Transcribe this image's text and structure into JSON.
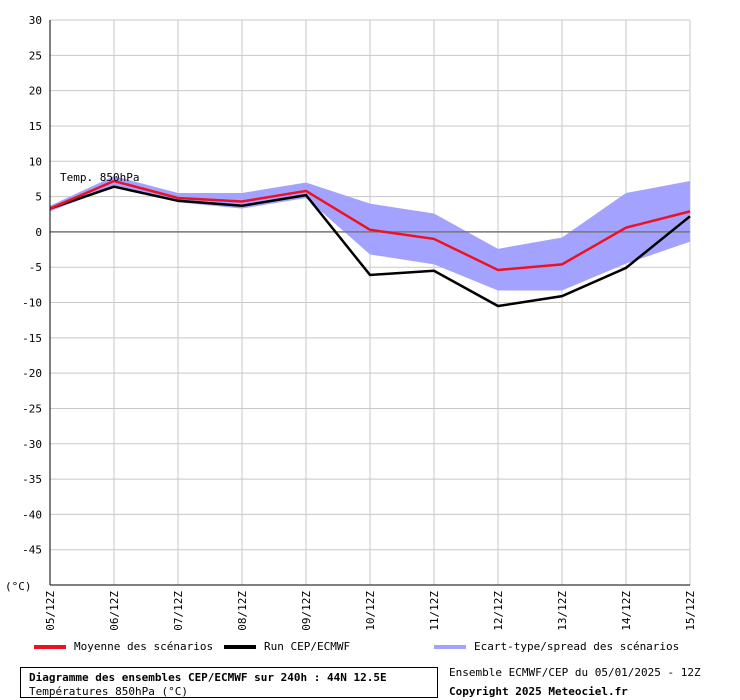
{
  "chart_data": {
    "type": "line",
    "annotation": "Temp. 850hPa",
    "unit_label": "(°C)",
    "categories": [
      "05/12Z",
      "06/12Z",
      "07/12Z",
      "08/12Z",
      "09/12Z",
      "10/12Z",
      "11/12Z",
      "12/12Z",
      "13/12Z",
      "14/12Z",
      "15/12Z"
    ],
    "ylim": [
      -50,
      30
    ],
    "yticks": [
      30,
      25,
      20,
      15,
      10,
      5,
      0,
      -5,
      -10,
      -15,
      -20,
      -25,
      -30,
      -35,
      -40,
      -45
    ],
    "grid": true,
    "series": [
      {
        "name": "Moyenne des scénarios",
        "color": "#ee1122",
        "values": [
          3.3,
          7.2,
          4.8,
          4.3,
          5.8,
          0.3,
          -1.0,
          -5.4,
          -4.6,
          0.6,
          2.9
        ]
      },
      {
        "name": "Run CEP/ECMWF",
        "color": "#000000",
        "values": [
          3.3,
          6.4,
          4.4,
          3.7,
          5.2,
          -6.1,
          -5.5,
          -10.5,
          -9.1,
          -5.1,
          2.2
        ]
      },
      {
        "name": "Ecart-type/spread des scénarios",
        "color": "#a3a3ff",
        "upper": [
          3.7,
          7.9,
          5.5,
          5.5,
          7.0,
          4.0,
          2.6,
          -2.4,
          -0.8,
          5.5,
          7.2
        ],
        "lower": [
          2.9,
          6.4,
          4.2,
          3.3,
          4.8,
          -3.2,
          -4.6,
          -8.3,
          -8.3,
          -4.5,
          -1.4
        ]
      }
    ]
  },
  "legend": {
    "mean": "Moyenne des scénarios",
    "run": "Run CEP/ECMWF",
    "spread": "Ecart-type/spread des scénarios"
  },
  "footer": {
    "title": "Diagramme des ensembles CEP/ECMWF sur 240h : 44N 12.5E",
    "subtitle": "Températures 850hPa (°C)",
    "info": "Ensemble ECMWF/CEP du 05/01/2025 - 12Z",
    "copyright": "Copyright 2025 Meteociel.fr"
  }
}
